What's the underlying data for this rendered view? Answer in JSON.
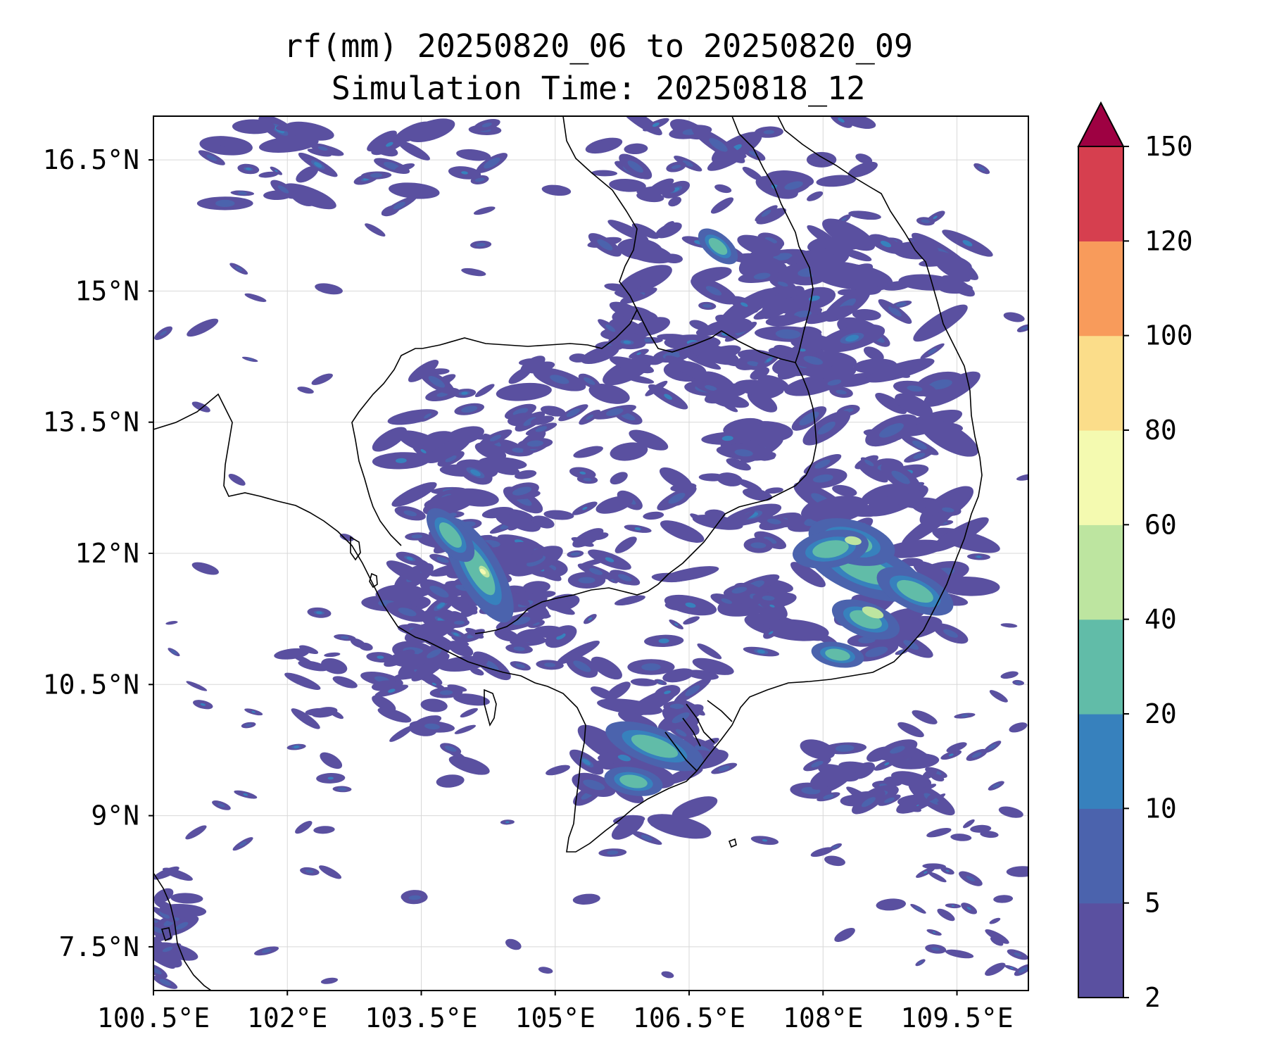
{
  "title": {
    "line1": "rf(mm) 20250820_06 to 20250820_09",
    "line2": "Simulation Time: 20250818_12"
  },
  "chart_data": {
    "type": "heatmap",
    "variable": "rf(mm)",
    "lon_ticks": [
      "100.5°E",
      "102°E",
      "103.5°E",
      "105°E",
      "106.5°E",
      "108°E",
      "109.5°E"
    ],
    "lat_ticks": [
      "16.5°N",
      "15°N",
      "13.5°N",
      "12°N",
      "10.5°N",
      "9°N",
      "7.5°N"
    ],
    "lon_range": [
      100.5,
      110.3
    ],
    "lat_range": [
      7.0,
      17.0
    ],
    "grid": true,
    "colorbar": {
      "levels": [
        2,
        5,
        10,
        20,
        40,
        60,
        80,
        100,
        120,
        150
      ],
      "tick_labels": [
        "2",
        "5",
        "10",
        "20",
        "40",
        "60",
        "80",
        "100",
        "120",
        "150"
      ],
      "colors": [
        "#5a50a0",
        "#4b63ad",
        "#3781bd",
        "#61bca8",
        "#bde5a0",
        "#f4fab0",
        "#fbdd8a",
        "#f89b5b",
        "#d63f4f"
      ],
      "extend_color": "#9e0142",
      "extend": "max"
    }
  }
}
